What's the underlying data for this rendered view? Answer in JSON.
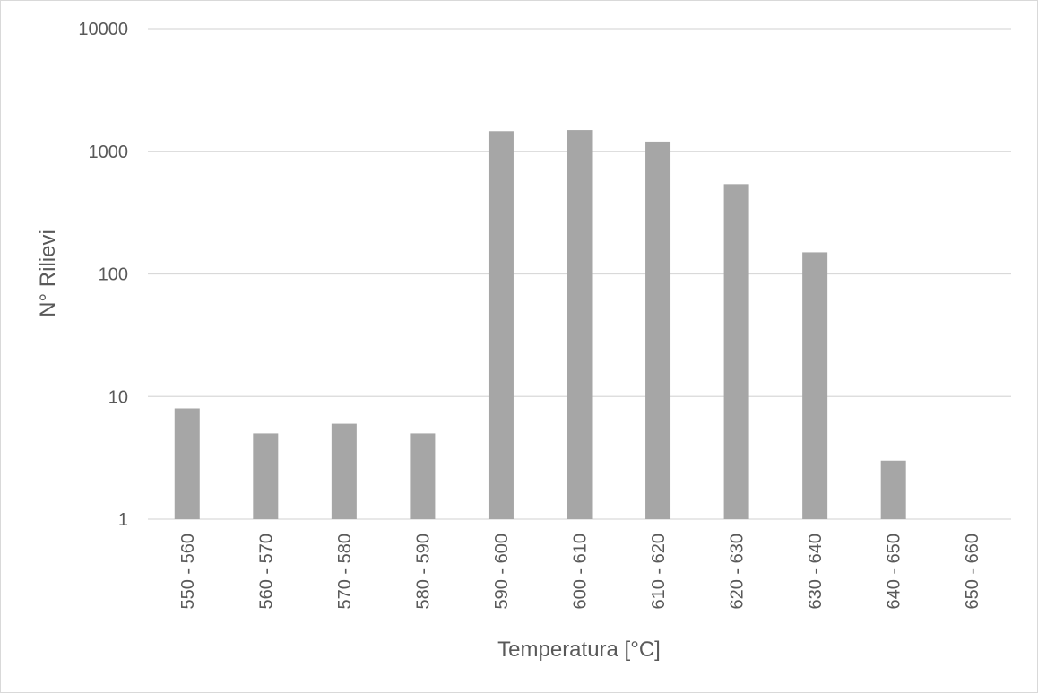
{
  "chart_data": {
    "type": "bar",
    "title": "",
    "xlabel": "Temperatura [°C]",
    "ylabel": "N° Rilievi",
    "yscale": "log",
    "ylim": [
      1,
      10000
    ],
    "yticks": [
      "1",
      "10",
      "100",
      "1000",
      "10000"
    ],
    "grid": true,
    "legend": "none",
    "categories": [
      "550 - 560",
      "560 - 570",
      "570 - 580",
      "580 - 590",
      "590 - 600",
      "600 - 610",
      "610 - 620",
      "620 - 630",
      "630 - 640",
      "640 - 650",
      "650 - 660"
    ],
    "series": [
      {
        "values": [
          8,
          5,
          6,
          5,
          1460,
          1490,
          1200,
          540,
          150,
          3,
          0
        ],
        "color": "#a6a6a6"
      }
    ]
  }
}
